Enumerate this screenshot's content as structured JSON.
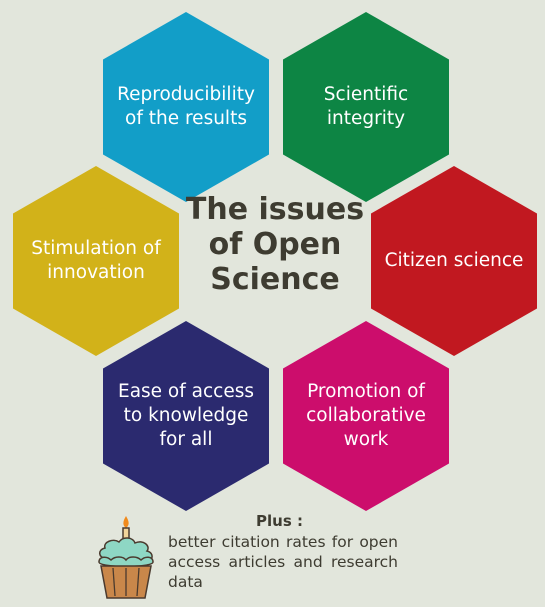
{
  "title": "The issues of Open Science",
  "hexagons": [
    {
      "label": "Reproducibility of the results",
      "color": "#129ec8"
    },
    {
      "label": "Scientific integrity",
      "color": "#0d8544"
    },
    {
      "label": "Stimulation of innovation",
      "color": "#d2b219"
    },
    {
      "label": "Citizen science",
      "color": "#c11820"
    },
    {
      "label": "Ease of access to knowledge for all",
      "color": "#2b2a6f"
    },
    {
      "label": "Promotion of collaborative work",
      "color": "#cc0d6c"
    }
  ],
  "plus": {
    "label": "Plus :",
    "text": "better citation rates for open access articles and research data",
    "icon": "cupcake-icon"
  }
}
